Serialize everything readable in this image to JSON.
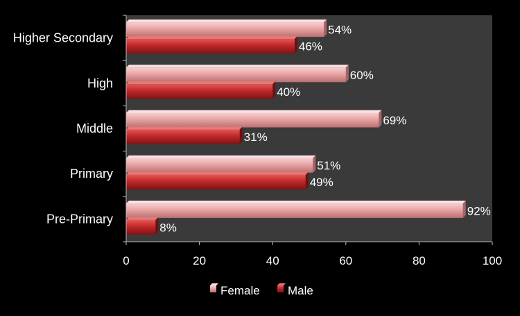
{
  "chart_data": {
    "type": "bar",
    "orientation": "horizontal",
    "categories": [
      "Higher Secondary",
      "High",
      "Middle",
      "Primary",
      "Pre-Primary"
    ],
    "series": [
      {
        "name": "Female",
        "values": [
          54,
          60,
          69,
          51,
          92
        ],
        "labels": [
          "54%",
          "60%",
          "69%",
          "51%",
          "92%"
        ],
        "color": "#E8A3A3"
      },
      {
        "name": "Male",
        "values": [
          46,
          40,
          31,
          49,
          8
        ],
        "labels": [
          "46%",
          "40%",
          "31%",
          "49%",
          "8%"
        ],
        "color": "#C0282A"
      }
    ],
    "x_ticks": [
      "0",
      "20",
      "40",
      "60",
      "80",
      "100"
    ],
    "xlim": [
      0,
      100
    ],
    "grid": false,
    "legend_position": "bottom",
    "plot_background": "#3a3a3a",
    "page_background": "#000000"
  }
}
